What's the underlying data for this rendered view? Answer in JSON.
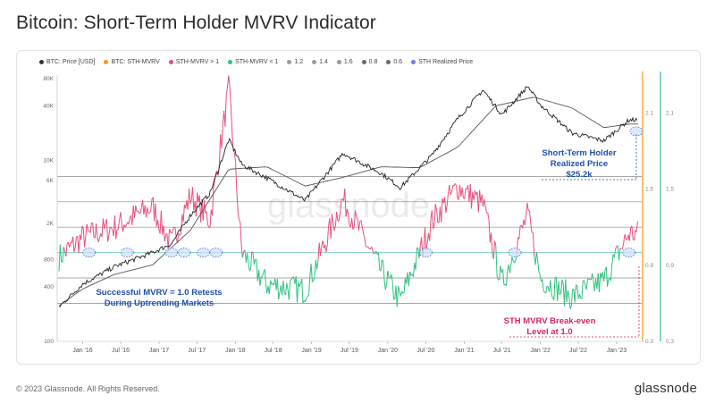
{
  "page": {
    "title": "Bitcoin: Short-Term Holder MVRV Indicator",
    "copyright": "© 2023 Glassnode. All Rights Reserved.",
    "brand": "glassnode",
    "watermark": "glassnode"
  },
  "legend": [
    {
      "label": "BTC: Price [USD]",
      "color": "#333333"
    },
    {
      "label": "BTC: STH-MVRV",
      "color": "#f7931a"
    },
    {
      "label": "STH-MVRV > 1",
      "color": "#e8507a"
    },
    {
      "label": "STH-MVRV < 1",
      "color": "#2ec27e"
    },
    {
      "label": "1.2",
      "color": "#9a9a9a"
    },
    {
      "label": "1.4",
      "color": "#9a9a9a"
    },
    {
      "label": "1.6",
      "color": "#9a9a9a"
    },
    {
      "label": "0.8",
      "color": "#6a6a6a"
    },
    {
      "label": "0.6",
      "color": "#6a6a6a"
    },
    {
      "label": "STH Realized Price",
      "color": "#6f7fe0"
    }
  ],
  "annotations": {
    "sth_realized_line1": "Short-Term Holder",
    "sth_realized_line2": "Realized Price",
    "sth_realized_value": "$25.2k",
    "retests_line1": "Successful MVRV = 1.0 Retests",
    "retests_line2": "During Uptrending Markets",
    "breakeven_line1": "STH MVRV Break-even",
    "breakeven_line2": "Level at 1.0"
  },
  "chart_data": {
    "type": "line",
    "title": "Bitcoin: Short-Term Holder MVRV Indicator",
    "x_ticks": [
      "Jan '16",
      "Jul '16",
      "Jan '17",
      "Jul '17",
      "Jan '18",
      "Jul '18",
      "Jan '19",
      "Jul '19",
      "Jan '20",
      "Jul '20",
      "Jan '21",
      "Jul '21",
      "Jan '22",
      "Jul '22",
      "Jan '23"
    ],
    "y_left_ticks": [
      "100",
      "400",
      "800",
      "2K",
      "6K",
      "10K",
      "40K",
      "80K"
    ],
    "y_left_scale": "log",
    "y_right_inner_ticks": [
      "2.1",
      "1.5",
      "0.9",
      "0.3"
    ],
    "y_right_outer_ticks": [
      "2.1",
      "1.5",
      "0.9",
      "0.3"
    ],
    "reference_lines": [
      1.6,
      1.4,
      1.2,
      1.0,
      0.8,
      0.6
    ],
    "grid": false,
    "legend_position": "top",
    "series": [
      {
        "name": "BTC: Price [USD]",
        "x": [
          "2015-09",
          "2016-01",
          "2016-06",
          "2016-12",
          "2017-03",
          "2017-06",
          "2017-09",
          "2017-12",
          "2018-02",
          "2018-06",
          "2018-12",
          "2019-06",
          "2019-12",
          "2020-03",
          "2020-08",
          "2020-12",
          "2021-04",
          "2021-07",
          "2021-11",
          "2022-01",
          "2022-06",
          "2022-11",
          "2023-03"
        ],
        "values": [
          230,
          430,
          670,
          960,
          1200,
          2500,
          4300,
          17000,
          9000,
          6400,
          3600,
          12000,
          7200,
          5000,
          11500,
          29000,
          60000,
          32000,
          66000,
          41000,
          20000,
          16500,
          28000
        ]
      },
      {
        "name": "STH Realized Price",
        "x": [
          "2015-09",
          "2016-01",
          "2016-06",
          "2016-12",
          "2017-06",
          "2017-12",
          "2018-06",
          "2018-12",
          "2019-06",
          "2019-12",
          "2020-06",
          "2020-12",
          "2021-06",
          "2021-12",
          "2022-06",
          "2022-11",
          "2023-03"
        ],
        "values": [
          240,
          380,
          550,
          700,
          1700,
          8000,
          8500,
          5200,
          6500,
          8500,
          8300,
          14000,
          40000,
          50000,
          38000,
          23000,
          25200
        ]
      },
      {
        "name": "BTC: STH-MVRV",
        "x": [
          "2015-09",
          "2016-01",
          "2016-06",
          "2016-12",
          "2017-03",
          "2017-06",
          "2017-09",
          "2017-12",
          "2018-02",
          "2018-06",
          "2018-12",
          "2019-06",
          "2019-12",
          "2020-03",
          "2020-08",
          "2020-12",
          "2021-04",
          "2021-07",
          "2021-11",
          "2022-01",
          "2022-06",
          "2022-11",
          "2023-03"
        ],
        "values": [
          0.95,
          1.12,
          1.2,
          1.36,
          1.06,
          1.45,
          1.25,
          2.3,
          1.0,
          0.75,
          0.7,
          1.42,
          0.85,
          0.62,
          1.25,
          1.52,
          1.38,
          0.75,
          1.3,
          0.8,
          0.65,
          0.78,
          1.15
        ]
      }
    ]
  }
}
